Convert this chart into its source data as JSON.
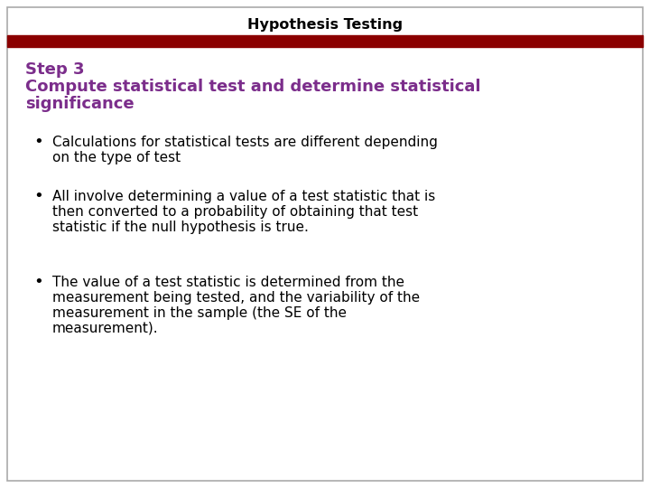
{
  "title": "Hypothesis Testing",
  "title_color": "#000000",
  "title_fontsize": 11.5,
  "header_bar_color": "#8B0000",
  "background_color": "#FFFFFF",
  "border_color": "#AAAAAA",
  "subtitle_color": "#7B2D8B",
  "subtitle_fontsize": 13,
  "subtitle_lines": [
    "Step 3",
    "Compute statistical test and determine statistical",
    "significance"
  ],
  "body_fontsize": 11,
  "body_color": "#000000",
  "bullet_symbol": "•",
  "bullets": [
    [
      "Calculations for statistical tests are different depending",
      "on the type of test"
    ],
    [
      "All involve determining a value of a test statistic that is",
      "then converted to a probability of obtaining that test",
      "statistic if the null hypothesis is true."
    ],
    [
      "The value of a test statistic is determined from the",
      "measurement being tested, and the variability of the",
      "measurement in the sample (the SE of the",
      "measurement)."
    ]
  ]
}
